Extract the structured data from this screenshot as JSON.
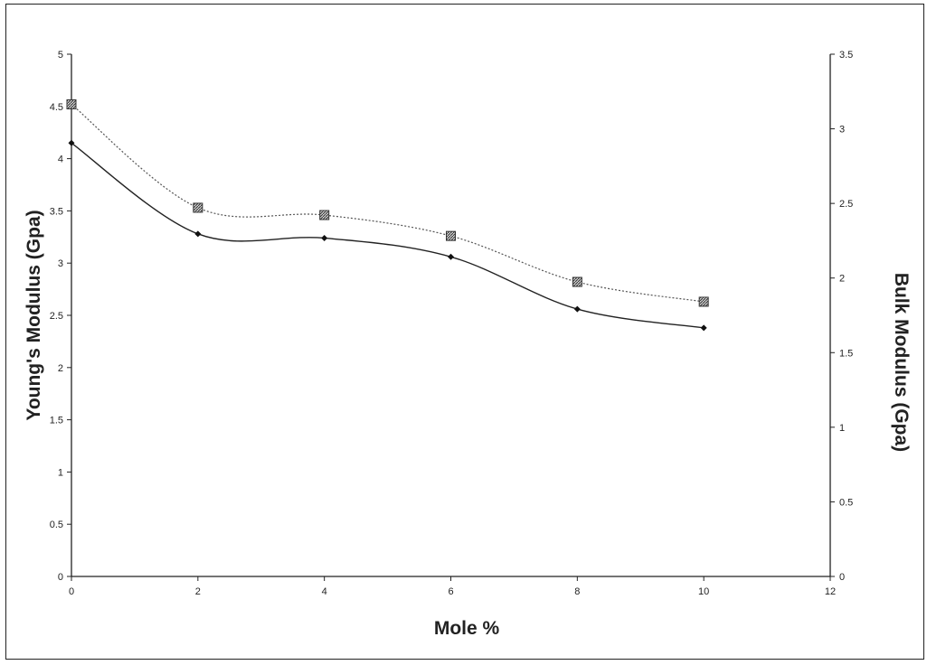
{
  "chart_data": {
    "type": "line",
    "title": "",
    "xlabel": "Mole %",
    "ylabel": "Young's Modulus (Gpa)",
    "y2label": "Bulk Modulus (Gpa)",
    "xlim": [
      0,
      12
    ],
    "ylim": [
      0,
      5
    ],
    "y2lim": [
      0,
      3.5
    ],
    "x_ticks": [
      "0",
      "2",
      "4",
      "6",
      "8",
      "10",
      "12"
    ],
    "y_ticks": [
      "0",
      "0.5",
      "1",
      "1.5",
      "2",
      "2.5",
      "3",
      "3.5",
      "4",
      "4.5",
      "5"
    ],
    "y2_ticks": [
      "0",
      "0.5",
      "1",
      "1.5",
      "2",
      "2.5",
      "3",
      "3.5"
    ],
    "grid": false,
    "series": [
      {
        "axis": "left",
        "marker": "diamond",
        "line": "solid",
        "color": "#222222",
        "x": [
          0,
          2,
          4,
          6,
          8,
          10
        ],
        "y": [
          4.15,
          3.28,
          3.24,
          3.06,
          2.56,
          2.38
        ]
      },
      {
        "axis": "left",
        "marker": "hatched-square",
        "line": "dotted",
        "color": "#555555",
        "x": [
          0,
          2,
          4,
          6,
          8,
          10
        ],
        "y": [
          4.52,
          3.53,
          3.46,
          3.26,
          2.82,
          2.63
        ]
      }
    ]
  }
}
